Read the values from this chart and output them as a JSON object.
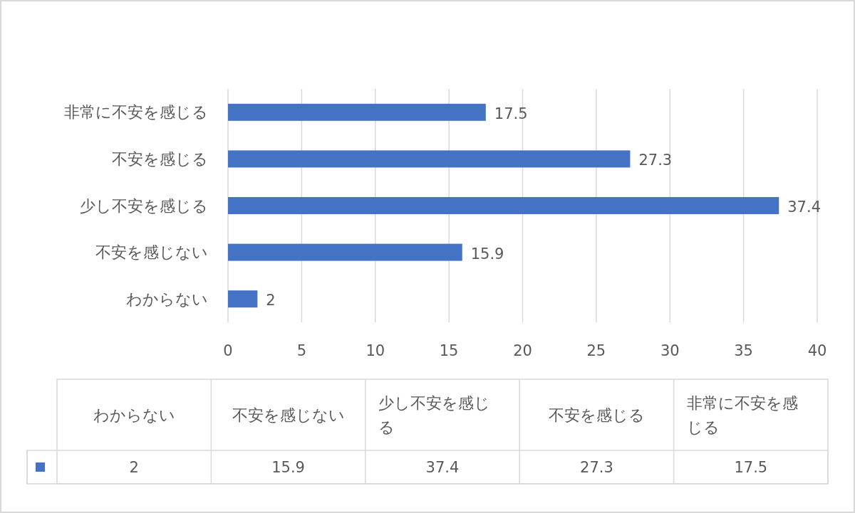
{
  "chart_data": {
    "type": "bar",
    "orientation": "horizontal",
    "categories": [
      "非常に不安を感じる",
      "不安を感じる",
      "少し不安を感じる",
      "不安を感じない",
      "わからない"
    ],
    "values": [
      17.5,
      27.3,
      37.4,
      15.9,
      2
    ],
    "color": "#4472c4",
    "xlim": [
      0,
      40
    ],
    "xticks": [
      0,
      5,
      10,
      15,
      20,
      25,
      30,
      35,
      40
    ],
    "annotations": [
      "2",
      "15.9",
      "37.4",
      "27.3",
      "17.5"
    ],
    "grid": "x",
    "data_labels": true
  }
}
